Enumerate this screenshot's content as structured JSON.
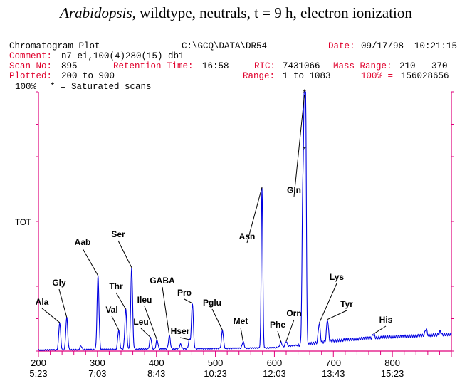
{
  "header": {
    "title_italic": "Arabidopsis",
    "title_rest": ", wildtype, neutrals, t = 9 h, electron ionization",
    "plot_name": "Chromatogram Plot",
    "file_path": "C:\\GCQ\\DATA\\DR54",
    "date_label": "Date:",
    "date_value": "09/17/98  10:21:15",
    "comment_label": "Comment:",
    "comment_value": "n7 ei,100(4)280(15) db1",
    "scan_no_label": "Scan No:",
    "scan_no_value": "895",
    "rt_label": "Retention Time:",
    "rt_value": "16:58",
    "ric_label": "RIC:",
    "ric_value": "7431066",
    "mass_range_label": "Mass Range:",
    "mass_range_value": "210 - 370",
    "plotted_label": "Plotted:",
    "plotted_value": "200 to 900",
    "range_label": "Range:",
    "range_value": "1 to 1083",
    "full_scale_label": "100% =",
    "full_scale_value": "156028656",
    "pct_label": "100%",
    "saturated_note": "* = Saturated scans"
  },
  "colors": {
    "frame": "#e0007c",
    "trace": "#0000e0",
    "red_text": "#e0002c"
  },
  "chart_data": {
    "type": "line",
    "title": "",
    "ylabel": "TOT",
    "x_range": [
      200,
      900
    ],
    "y_range": [
      0,
      100
    ],
    "x_ticks": [
      {
        "scan": 200,
        "time": "5:23"
      },
      {
        "scan": 300,
        "time": "7:03"
      },
      {
        "scan": 400,
        "time": "8:43"
      },
      {
        "scan": 500,
        "time": "10:23"
      },
      {
        "scan": 600,
        "time": "12:03"
      },
      {
        "scan": 700,
        "time": "13:43"
      },
      {
        "scan": 800,
        "time": "15:23"
      }
    ],
    "baseline": [
      [
        200,
        0.4
      ],
      [
        300,
        0.6
      ],
      [
        400,
        0.8
      ],
      [
        500,
        1.0
      ],
      [
        580,
        1.2
      ],
      [
        600,
        1.3
      ],
      [
        650,
        2.5
      ],
      [
        700,
        4.0
      ],
      [
        760,
        5.0
      ],
      [
        800,
        5.5
      ],
      [
        850,
        6.0
      ],
      [
        900,
        6.5
      ]
    ],
    "peaks": [
      {
        "scan": 236,
        "height": 10.5,
        "name": "Ala"
      },
      {
        "scan": 248,
        "height": 12.5,
        "name": "Gly"
      },
      {
        "scan": 301,
        "height": 28.5,
        "name": "Aab"
      },
      {
        "scan": 336,
        "height": 7.5,
        "name": "Val"
      },
      {
        "scan": 348,
        "height": 15.5,
        "name": "Thr"
      },
      {
        "scan": 358,
        "height": 31.5,
        "name": "Ser"
      },
      {
        "scan": 390,
        "height": 4.5,
        "name": "Leu"
      },
      {
        "scan": 401,
        "height": 3.5,
        "name": "Ileu"
      },
      {
        "scan": 422,
        "height": 5.0,
        "name": "GABA"
      },
      {
        "scan": 456,
        "height": 3.5,
        "name": "Hser"
      },
      {
        "scan": 461,
        "height": 17.5,
        "name": "Pro"
      },
      {
        "scan": 512,
        "height": 7.0,
        "name": "Pglu"
      },
      {
        "scan": 547,
        "height": 2.5,
        "name": "Met"
      },
      {
        "scan": 579,
        "height": 62.0,
        "name": "Asn"
      },
      {
        "scan": 611,
        "height": 2.0,
        "name": "Phe"
      },
      {
        "scan": 620,
        "height": 2.0,
        "name": "Orn"
      },
      {
        "scan": 651,
        "height": 99.0,
        "name": "Gln",
        "saturated": true
      },
      {
        "scan": 676,
        "height": 7.5,
        "name": "Lys"
      },
      {
        "scan": 690,
        "height": 8.5,
        "name": "Tyr"
      },
      {
        "scan": 768,
        "height": 1.5,
        "name": "His"
      }
    ],
    "minor_peaks": [
      {
        "scan": 272,
        "height": 1.5
      },
      {
        "scan": 441,
        "height": 1.8
      },
      {
        "scan": 648,
        "height": 55.0
      },
      {
        "scan": 653,
        "height": 76.0
      },
      {
        "scan": 857,
        "height": 2.5
      },
      {
        "scan": 881,
        "height": 1.2
      }
    ]
  }
}
